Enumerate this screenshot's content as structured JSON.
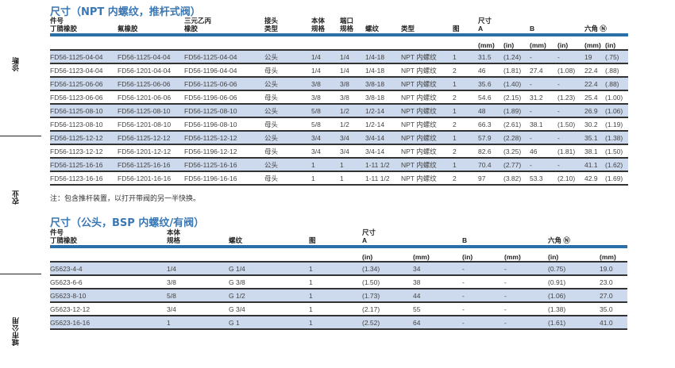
{
  "side_labels": [
    "诊断",
    "农业",
    "城市公用"
  ],
  "npt": {
    "title": "尺寸（NPT 内螺纹，推杆式阀）",
    "headers": {
      "part": "件号",
      "nitrile": "丁腈橡胶",
      "viton": "氟橡胶",
      "epdm": "三元乙丙",
      "epdm2": "橡胶",
      "conn1": "接头",
      "conn2": "类型",
      "body1": "本体",
      "body2": "规格",
      "port1": "端口",
      "port2": "规格",
      "thread": "螺纹",
      "type": "类型",
      "fig": "图",
      "dim": "尺寸",
      "a": "A",
      "b": "B",
      "hex": "六角",
      "hex_icon": "hex-icon"
    },
    "units": [
      "(mm)",
      "(in)",
      "(mm)",
      "(in)",
      "(mm)",
      "(in)"
    ],
    "rows": [
      [
        "FD56-1125-04-04",
        "FD56-1125-04-04",
        "FD56-1125-04-04",
        "公头",
        "1/4",
        "1/4",
        "1/4-18",
        "NPT 内螺纹",
        "1",
        "31.5",
        "(1.24)",
        "-",
        "-",
        "19",
        "(.75)"
      ],
      [
        "FD56-1123-04-04",
        "FD56-1201-04-04",
        "FD56-1196-04-04",
        "母头",
        "1/4",
        "1/4",
        "1/4-18",
        "NPT 内螺纹",
        "2",
        "46",
        "(1.81)",
        "27.4",
        "(1.08)",
        "22.4",
        "(.88)"
      ],
      [
        "FD56-1125-06-06",
        "FD56-1125-06-06",
        "FD56-1125-06-06",
        "公头",
        "3/8",
        "3/8",
        "3/8-18",
        "NPT 内螺纹",
        "1",
        "35.6",
        "(1.40)",
        "-",
        "-",
        "22.4",
        "(.88)"
      ],
      [
        "FD56-1123-06-06",
        "FD56-1201-06-06",
        "FD56-1196-06-06",
        "母头",
        "3/8",
        "3/8",
        "3/8-18",
        "NPT 内螺纹",
        "2",
        "54.6",
        "(2.15)",
        "31.2",
        "(1.23)",
        "25.4",
        "(1.00)"
      ],
      [
        "FD56-1125-08-10",
        "FD56-1125-08-10",
        "FD56-1125-08-10",
        "公头",
        "5/8",
        "1/2",
        "1/2-14",
        "NPT 内螺纹",
        "1",
        "48",
        "(1.89)",
        "-",
        "-",
        "26.9",
        "(1.06)"
      ],
      [
        "FD56-1123-08-10",
        "FD56-1201-08-10",
        "FD56-1196-08-10",
        "母头",
        "5/8",
        "1/2",
        "1/2-14",
        "NPT 内螺纹",
        "2",
        "66.3",
        "(2.61)",
        "38.1",
        "(1.50)",
        "30.2",
        "(1.19)"
      ],
      [
        "FD56-1125-12-12",
        "FD56-1125-12-12",
        "FD56-1125-12-12",
        "公头",
        "3/4",
        "3/4",
        "3/4-14",
        "NPT 内螺纹",
        "1",
        "57.9",
        "(2.28)",
        "-",
        "-",
        "35.1",
        "(1.38)"
      ],
      [
        "FD56-1123-12-12",
        "FD56-1201-12-12",
        "FD56-1196-12-12",
        "母头",
        "3/4",
        "3/4",
        "3/4-14",
        "NPT 内螺纹",
        "2",
        "82.6",
        "(3.25)",
        "46",
        "(1.81)",
        "38.1",
        "(1.50)"
      ],
      [
        "FD56-1125-16-16",
        "FD56-1125-16-16",
        "FD56-1125-16-16",
        "公头",
        "1",
        "1",
        "1-11 1/2",
        "NPT 内螺纹",
        "1",
        "70.4",
        "(2.77)",
        "-",
        "-",
        "41.1",
        "(1.62)"
      ],
      [
        "FD56-1123-16-16",
        "FD56-1201-16-16",
        "FD56-1196-16-16",
        "母头",
        "1",
        "1",
        "1-11 1/2",
        "NPT 内螺纹",
        "2",
        "97",
        "(3.82)",
        "53.3",
        "(2.10)",
        "42.9",
        "(1.69)"
      ]
    ],
    "note": "注：包含推杆装置，以打开带阀的另一半快换。"
  },
  "bsp": {
    "title": "尺寸（公头，BSP 内螺纹/有阀）",
    "headers": {
      "part": "件号",
      "nitrile": "丁腈橡胶",
      "body1": "本体",
      "body2": "规格",
      "thread": "螺纹",
      "fig": "图",
      "dim": "尺寸",
      "a": "A",
      "b": "B",
      "hex": "六角"
    },
    "units": [
      "(in)",
      "(mm)",
      "(in)",
      "(mm)",
      "(in)",
      "(mm)"
    ],
    "rows": [
      [
        "G5623-4-4",
        "1/4",
        "G 1/4",
        "1",
        "(1.34)",
        "34",
        "-",
        "-",
        "(0.75)",
        "19.0"
      ],
      [
        "G5623-6-6",
        "3/8",
        "G 3/8",
        "1",
        "(1.50)",
        "38",
        "-",
        "-",
        "(0.91)",
        "23.0"
      ],
      [
        "G5623-8-10",
        "5/8",
        "G 1/2",
        "1",
        "(1.73)",
        "44",
        "-",
        "-",
        "(1.06)",
        "27.0"
      ],
      [
        "G5623-12-12",
        "3/4",
        "G 3/4",
        "1",
        "(2.17)",
        "55",
        "-",
        "-",
        "(1.38)",
        "35.0"
      ],
      [
        "G5623-16-16",
        "1",
        "G 1",
        "1",
        "(2.52)",
        "64",
        "-",
        "-",
        "(1.61)",
        "41.0"
      ]
    ]
  }
}
